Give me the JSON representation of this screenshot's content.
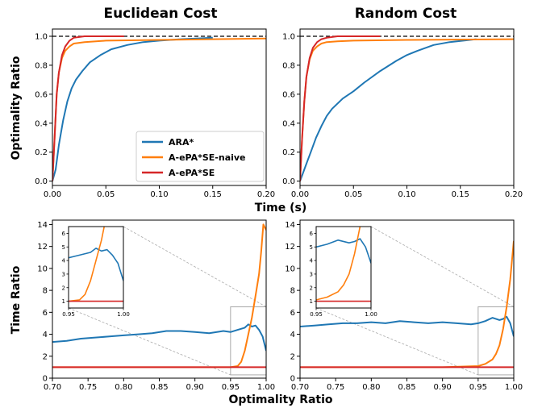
{
  "figure": {
    "top_left_title": "Euclidean Cost",
    "top_right_title": "Random Cost",
    "top_xlabel": "Time (s)",
    "top_ylabel": "Optimality Ratio",
    "bottom_xlabel": "Optimality Ratio",
    "bottom_ylabel": "Time Ratio"
  },
  "colors": {
    "ara": "#1f77b4",
    "naive": "#ff7f0e",
    "aepase": "#d62728",
    "reference": "#000000",
    "zoombox": "#aaaaaa"
  },
  "chart_data": [
    {
      "id": "top_left",
      "type": "line",
      "title": "Euclidean Cost",
      "xlim": [
        0,
        0.2
      ],
      "ylim": [
        -0.03,
        1.05
      ],
      "xticks": [
        0.0,
        0.05,
        0.1,
        0.15,
        0.2
      ],
      "xtick_labels": [
        "0.00",
        "0.05",
        "0.10",
        "0.15",
        "0.20"
      ],
      "yticks": [
        0.0,
        0.2,
        0.4,
        0.6,
        0.8,
        1.0
      ],
      "ytick_labels": [
        "0.0",
        "0.2",
        "0.4",
        "0.6",
        "0.8",
        "1.0"
      ],
      "reference_line": 1.0,
      "legend": {
        "placement": "lower-right",
        "entries": [
          "ARA*",
          "A-ePA*SE-naive",
          "A-ePA*SE"
        ]
      },
      "series": [
        {
          "name": "ARA*",
          "color_key": "ara",
          "x": [
            0,
            0.003,
            0.006,
            0.01,
            0.014,
            0.018,
            0.022,
            0.028,
            0.035,
            0.045,
            0.055,
            0.07,
            0.085,
            0.1,
            0.12,
            0.15
          ],
          "y": [
            0,
            0.08,
            0.25,
            0.42,
            0.55,
            0.64,
            0.7,
            0.76,
            0.82,
            0.87,
            0.91,
            0.94,
            0.96,
            0.97,
            0.98,
            0.99
          ]
        },
        {
          "name": "A-ePA*SE-naive",
          "color_key": "naive",
          "x": [
            0,
            0.002,
            0.004,
            0.006,
            0.009,
            0.012,
            0.016,
            0.02,
            0.03,
            0.05,
            0.1,
            0.15,
            0.2
          ],
          "y": [
            0,
            0.3,
            0.6,
            0.75,
            0.85,
            0.9,
            0.93,
            0.95,
            0.96,
            0.97,
            0.975,
            0.98,
            0.985
          ]
        },
        {
          "name": "A-ePA*SE",
          "color_key": "aepase",
          "x": [
            0,
            0.002,
            0.004,
            0.006,
            0.009,
            0.012,
            0.016,
            0.02,
            0.03,
            0.05,
            0.067
          ],
          "y": [
            0,
            0.3,
            0.6,
            0.75,
            0.87,
            0.93,
            0.97,
            0.99,
            1.0,
            1.0,
            1.0
          ]
        }
      ]
    },
    {
      "id": "top_right",
      "type": "line",
      "title": "Random Cost",
      "xlim": [
        0,
        0.2
      ],
      "ylim": [
        -0.03,
        1.05
      ],
      "xticks": [
        0.0,
        0.05,
        0.1,
        0.15,
        0.2
      ],
      "xtick_labels": [
        "0.00",
        "0.05",
        "0.10",
        "0.15",
        "0.20"
      ],
      "yticks": [
        0.0,
        0.2,
        0.4,
        0.6,
        0.8,
        1.0
      ],
      "ytick_labels": [
        "0.0",
        "0.2",
        "0.4",
        "0.6",
        "0.8",
        "1.0"
      ],
      "reference_line": 1.0,
      "series": [
        {
          "name": "ARA*",
          "color_key": "ara",
          "x": [
            0,
            0.005,
            0.01,
            0.015,
            0.02,
            0.025,
            0.03,
            0.04,
            0.05,
            0.06,
            0.075,
            0.09,
            0.1,
            0.11,
            0.125,
            0.14,
            0.165
          ],
          "y": [
            0,
            0.1,
            0.2,
            0.3,
            0.38,
            0.45,
            0.5,
            0.57,
            0.62,
            0.68,
            0.76,
            0.83,
            0.87,
            0.9,
            0.94,
            0.96,
            0.98
          ]
        },
        {
          "name": "A-ePA*SE-naive",
          "color_key": "naive",
          "x": [
            0,
            0.002,
            0.004,
            0.006,
            0.009,
            0.012,
            0.016,
            0.02,
            0.025,
            0.035,
            0.05,
            0.1,
            0.2
          ],
          "y": [
            0,
            0.3,
            0.55,
            0.72,
            0.84,
            0.9,
            0.93,
            0.95,
            0.96,
            0.965,
            0.97,
            0.975,
            0.98
          ]
        },
        {
          "name": "A-ePA*SE",
          "color_key": "aepase",
          "x": [
            0,
            0.002,
            0.004,
            0.006,
            0.009,
            0.012,
            0.016,
            0.02,
            0.025,
            0.035,
            0.05,
            0.075
          ],
          "y": [
            0,
            0.3,
            0.55,
            0.72,
            0.85,
            0.92,
            0.96,
            0.98,
            0.99,
            1.0,
            1.0,
            1.0
          ]
        }
      ]
    },
    {
      "id": "bottom_left",
      "type": "line",
      "xlim": [
        0.7,
        1.0
      ],
      "ylim": [
        0,
        14.4
      ],
      "xticks": [
        0.7,
        0.75,
        0.8,
        0.85,
        0.9,
        0.95,
        1.0
      ],
      "xtick_labels": [
        "0.70",
        "0.75",
        "0.80",
        "0.85",
        "0.90",
        "0.95",
        "1.00"
      ],
      "yticks": [
        0,
        2,
        4,
        6,
        8,
        10,
        12,
        14
      ],
      "ytick_labels": [
        "0",
        "2",
        "4",
        "6",
        "8",
        "10",
        "12",
        "14"
      ],
      "zoom_box": {
        "x": [
          0.95,
          1.0
        ],
        "y": [
          0.3,
          6.5
        ]
      },
      "inset": {
        "xlim": [
          0.95,
          1.0
        ],
        "ylim": [
          0.5,
          6.5
        ],
        "xticks": [
          0.95,
          1.0
        ],
        "xtick_labels": [
          "0.95",
          "1.00"
        ],
        "yticks": [
          1,
          2,
          3,
          4,
          5,
          6
        ],
        "ytick_labels": [
          "1",
          "2",
          "3",
          "4",
          "5",
          "6"
        ]
      },
      "series": [
        {
          "name": "ARA*",
          "color_key": "ara",
          "x": [
            0.7,
            0.72,
            0.74,
            0.76,
            0.78,
            0.8,
            0.82,
            0.84,
            0.86,
            0.88,
            0.9,
            0.92,
            0.94,
            0.95,
            0.96,
            0.97,
            0.975,
            0.98,
            0.985,
            0.99,
            0.995,
            1.0
          ],
          "y": [
            3.3,
            3.4,
            3.6,
            3.7,
            3.8,
            3.9,
            4.0,
            4.1,
            4.3,
            4.3,
            4.2,
            4.1,
            4.3,
            4.2,
            4.4,
            4.6,
            4.9,
            4.7,
            4.8,
            4.4,
            3.8,
            2.5
          ]
        },
        {
          "name": "A-ePA*SE-naive",
          "color_key": "naive",
          "x": [
            0.7,
            0.8,
            0.9,
            0.95,
            0.96,
            0.965,
            0.97,
            0.975,
            0.98,
            0.985,
            0.99,
            0.993,
            0.996,
            1.0
          ],
          "y": [
            1.0,
            1.0,
            1.0,
            1.0,
            1.1,
            1.5,
            2.5,
            4.0,
            5.5,
            7.5,
            9.5,
            11.5,
            14.0,
            13.5
          ]
        },
        {
          "name": "A-ePA*SE",
          "color_key": "aepase",
          "x": [
            0.7,
            1.0
          ],
          "y": [
            1.0,
            1.0
          ]
        }
      ]
    },
    {
      "id": "bottom_right",
      "type": "line",
      "xlim": [
        0.7,
        1.0
      ],
      "ylim": [
        0,
        14.4
      ],
      "xticks": [
        0.7,
        0.75,
        0.8,
        0.85,
        0.9,
        0.95,
        1.0
      ],
      "xtick_labels": [
        "0.70",
        "0.75",
        "0.80",
        "0.85",
        "0.90",
        "0.95",
        "1.00"
      ],
      "yticks": [
        0,
        2,
        4,
        6,
        8,
        10,
        12,
        14
      ],
      "ytick_labels": [
        "0",
        "2",
        "4",
        "6",
        "8",
        "10",
        "12",
        "14"
      ],
      "zoom_box": {
        "x": [
          0.95,
          1.0
        ],
        "y": [
          0.3,
          6.5
        ]
      },
      "inset": {
        "xlim": [
          0.95,
          1.0
        ],
        "ylim": [
          0.5,
          6.5
        ],
        "xticks": [
          0.95,
          1.0
        ],
        "xtick_labels": [
          "0.95",
          "1.00"
        ],
        "yticks": [
          1,
          2,
          3,
          4,
          5,
          6
        ],
        "ytick_labels": [
          "1",
          "2",
          "3",
          "4",
          "5",
          "6"
        ]
      },
      "series": [
        {
          "name": "ARA*",
          "color_key": "ara",
          "x": [
            0.7,
            0.72,
            0.74,
            0.76,
            0.78,
            0.8,
            0.82,
            0.84,
            0.86,
            0.88,
            0.9,
            0.92,
            0.94,
            0.95,
            0.96,
            0.97,
            0.98,
            0.985,
            0.99,
            0.995,
            1.0
          ],
          "y": [
            4.7,
            4.8,
            4.9,
            5.0,
            5.0,
            5.1,
            5.0,
            5.2,
            5.1,
            5.0,
            5.1,
            5.0,
            4.9,
            5.0,
            5.2,
            5.5,
            5.3,
            5.4,
            5.6,
            5.0,
            3.8
          ]
        },
        {
          "name": "A-ePA*SE-naive",
          "color_key": "naive",
          "x": [
            0.7,
            0.8,
            0.9,
            0.95,
            0.96,
            0.97,
            0.975,
            0.98,
            0.985,
            0.99,
            0.995,
            1.0
          ],
          "y": [
            1.0,
            1.0,
            1.0,
            1.1,
            1.3,
            1.7,
            2.2,
            3.0,
            4.5,
            6.5,
            9.0,
            12.5
          ]
        },
        {
          "name": "A-ePA*SE",
          "color_key": "aepase",
          "x": [
            0.7,
            1.0
          ],
          "y": [
            1.0,
            1.0
          ]
        }
      ]
    }
  ]
}
